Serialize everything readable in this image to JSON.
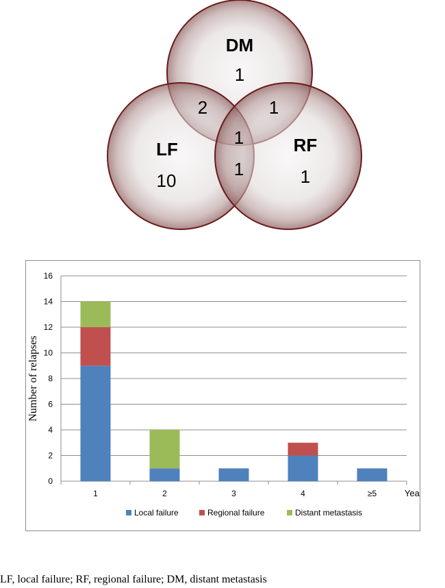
{
  "venn": {
    "sets": [
      {
        "label": "DM",
        "count": "1"
      },
      {
        "label": "LF",
        "count": "10"
      },
      {
        "label": "RF",
        "count": "1"
      }
    ],
    "overlaps": {
      "dm_lf": "2",
      "dm_rf": "1",
      "all_three": "1",
      "lf_rf": "1"
    }
  },
  "chart_data": {
    "type": "bar",
    "stacked": true,
    "categories": [
      "1",
      "2",
      "3",
      "4",
      "≥5"
    ],
    "xlabel": "Year",
    "ylabel": "Number of relapses",
    "ylim": [
      0,
      16
    ],
    "yticks": [
      0,
      2,
      4,
      6,
      8,
      10,
      12,
      14,
      16
    ],
    "grid": true,
    "legend_position": "bottom",
    "series": [
      {
        "name": "Local failure",
        "color": "#4f81bd",
        "values": [
          9,
          1,
          1,
          2,
          1
        ]
      },
      {
        "name": "Regional failure",
        "color": "#c0504d",
        "values": [
          3,
          0,
          0,
          1,
          0
        ]
      },
      {
        "name": "Distant metastasis",
        "color": "#9bbb59",
        "values": [
          2,
          3,
          0,
          0,
          0
        ]
      }
    ]
  },
  "caption": "LF, local failure; RF, regional failure; DM, distant metastasis"
}
